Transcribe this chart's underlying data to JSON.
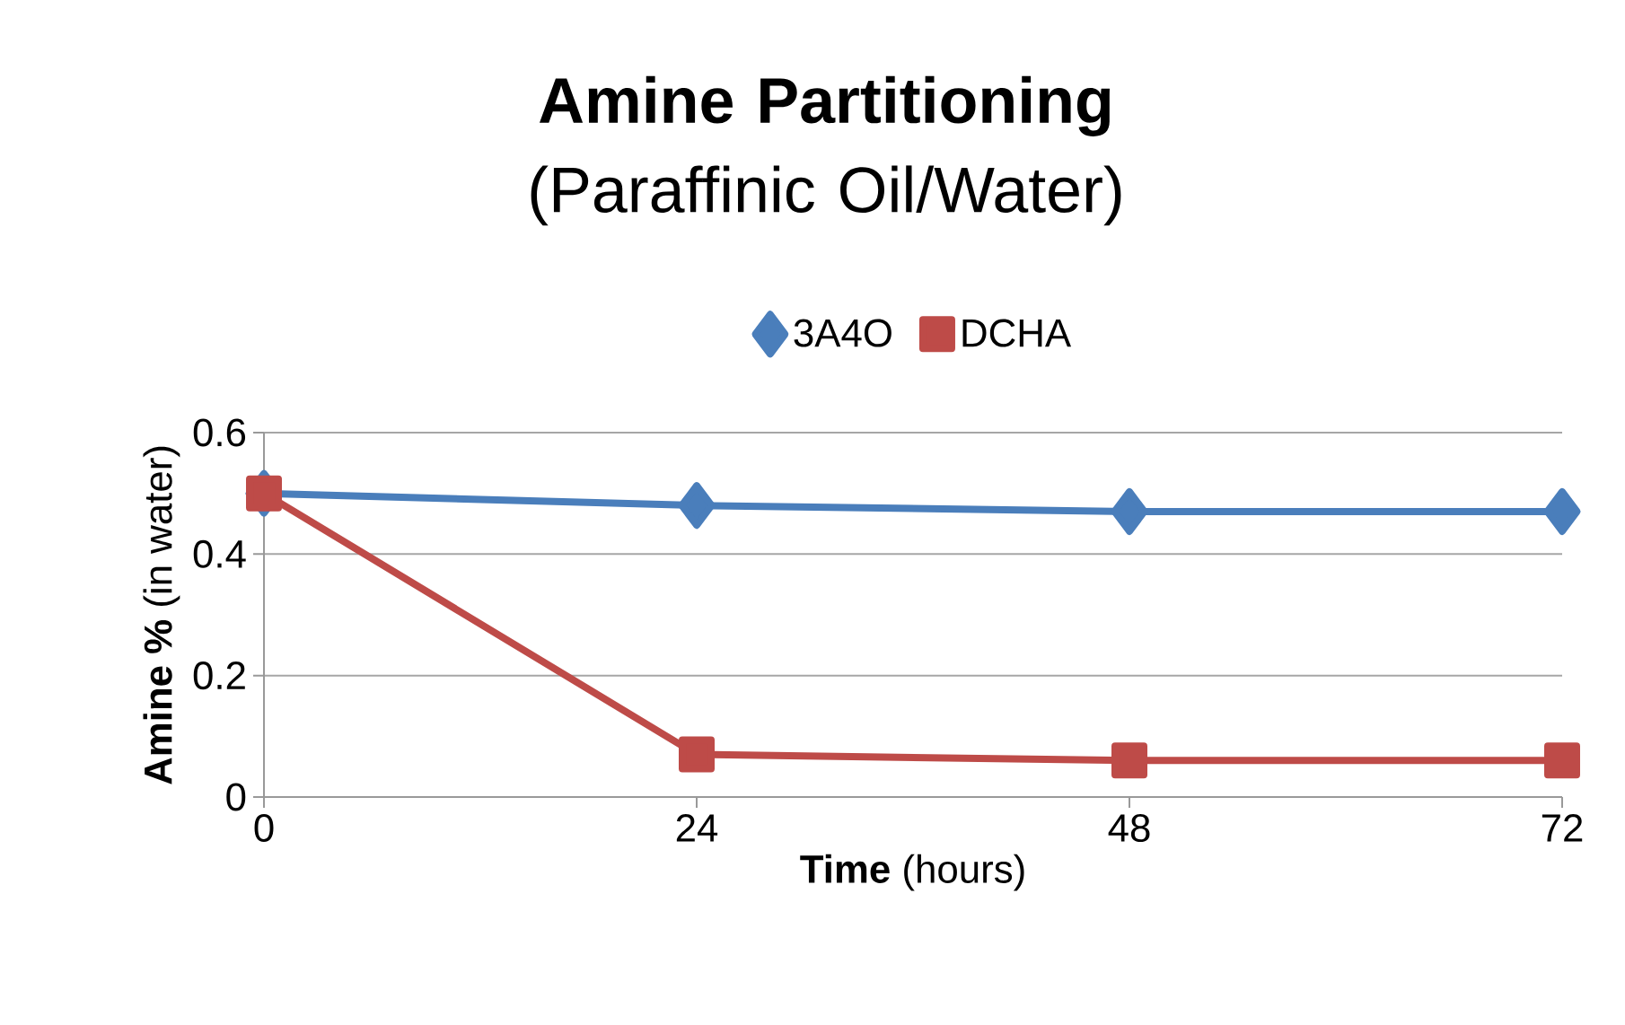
{
  "chart_data": {
    "type": "line",
    "title": "**Amine Partitioning** (Paraffinic Oil/Water)",
    "xlabel": "**Time** (hours)",
    "ylabel": "**Amine %** (in water)",
    "x": [
      0,
      24,
      48,
      72
    ],
    "series": [
      {
        "name": "3A4O",
        "color": "#4a7ebb",
        "marker": "diamond",
        "values": [
          0.5,
          0.48,
          0.47,
          0.47
        ]
      },
      {
        "name": "DCHA",
        "color": "#be4b48",
        "marker": "square",
        "values": [
          0.5,
          0.07,
          0.06,
          0.06
        ]
      }
    ],
    "xlim": [
      0,
      72
    ],
    "xticks": [
      0,
      24,
      48,
      72
    ],
    "ylim": [
      0,
      0.6
    ],
    "yticks": [
      0,
      0.2,
      0.4,
      0.6
    ],
    "grid": "y",
    "legend": "top",
    "line_style": "solid"
  }
}
